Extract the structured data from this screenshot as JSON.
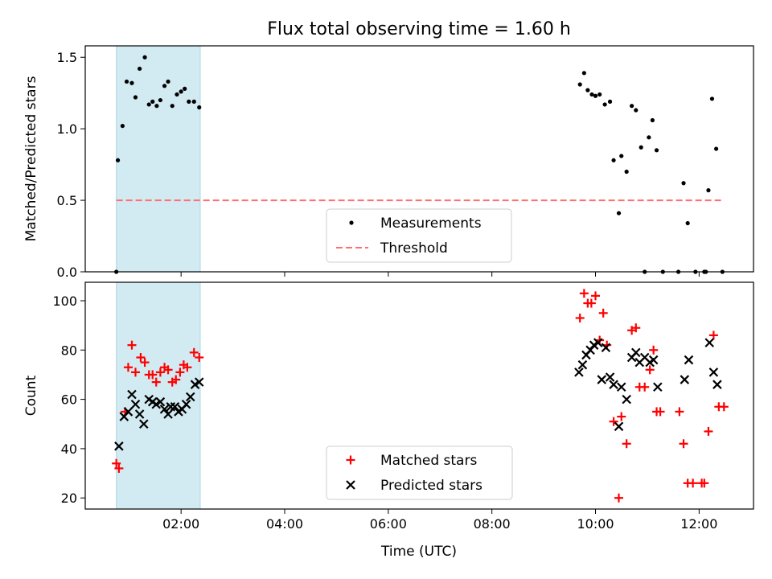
{
  "chart_data": {
    "title": "Flux total observing time = 1.60 h",
    "xlabel": "Time (UTC)",
    "x_ticks": [
      "02:00",
      "04:00",
      "06:00",
      "08:00",
      "10:00",
      "12:00"
    ],
    "x_tick_hours": [
      2,
      4,
      6,
      8,
      10,
      12
    ],
    "xlim_hours": [
      0.15,
      13.05
    ],
    "shaded_interval_hours": [
      0.75,
      2.37
    ],
    "colors": {
      "shade": "#add8e6",
      "measurements": "#000000",
      "threshold": "#ff6f6f",
      "matched": "#ff0000",
      "predicted": "#000000"
    },
    "panels": [
      {
        "type": "scatter",
        "ylabel": "Matched/Predicted stars",
        "ylim": [
          0,
          1.58
        ],
        "y_ticks": [
          "0.0",
          "0.5",
          "1.0",
          "1.5"
        ],
        "legend": {
          "placement": "lower-center",
          "entries": [
            "Measurements",
            "Threshold"
          ]
        },
        "threshold": 0.5,
        "threshold_x_hours": [
          0.75,
          12.45
        ],
        "series": [
          {
            "name": "Measurements",
            "marker": "dot",
            "points": [
              [
                0.75,
                0.0
              ],
              [
                0.78,
                0.78
              ],
              [
                0.87,
                1.02
              ],
              [
                0.95,
                1.33
              ],
              [
                1.05,
                1.32
              ],
              [
                1.12,
                1.22
              ],
              [
                1.2,
                1.42
              ],
              [
                1.3,
                1.5
              ],
              [
                1.38,
                1.17
              ],
              [
                1.45,
                1.19
              ],
              [
                1.53,
                1.16
              ],
              [
                1.6,
                1.2
              ],
              [
                1.68,
                1.3
              ],
              [
                1.75,
                1.33
              ],
              [
                1.83,
                1.16
              ],
              [
                1.92,
                1.24
              ],
              [
                2.0,
                1.26
              ],
              [
                2.07,
                1.28
              ],
              [
                2.15,
                1.19
              ],
              [
                2.25,
                1.19
              ],
              [
                2.35,
                1.15
              ],
              [
                9.7,
                1.31
              ],
              [
                9.78,
                1.39
              ],
              [
                9.85,
                1.27
              ],
              [
                9.93,
                1.24
              ],
              [
                10.0,
                1.23
              ],
              [
                10.08,
                1.24
              ],
              [
                10.18,
                1.17
              ],
              [
                10.28,
                1.19
              ],
              [
                10.35,
                0.78
              ],
              [
                10.45,
                0.41
              ],
              [
                10.5,
                0.81
              ],
              [
                10.6,
                0.7
              ],
              [
                10.7,
                1.16
              ],
              [
                10.78,
                1.13
              ],
              [
                10.88,
                0.87
              ],
              [
                10.95,
                0.0
              ],
              [
                11.03,
                0.94
              ],
              [
                11.1,
                1.06
              ],
              [
                11.18,
                0.85
              ],
              [
                11.3,
                0.0
              ],
              [
                11.6,
                0.0
              ],
              [
                11.7,
                0.62
              ],
              [
                11.78,
                0.34
              ],
              [
                11.93,
                0.0
              ],
              [
                12.1,
                0.0
              ],
              [
                12.13,
                0.0
              ],
              [
                12.18,
                0.57
              ],
              [
                12.25,
                1.21
              ],
              [
                12.33,
                0.86
              ],
              [
                12.45,
                0.0
              ]
            ]
          }
        ]
      },
      {
        "type": "scatter",
        "ylabel": "Count",
        "ylim": [
          15.5,
          107.5
        ],
        "y_ticks": [
          "20",
          "40",
          "60",
          "80",
          "100"
        ],
        "legend": {
          "placement": "lower-center",
          "entries": [
            "Matched stars",
            "Predicted stars"
          ]
        },
        "series": [
          {
            "name": "Matched stars",
            "marker": "plus",
            "points": [
              [
                0.75,
                34
              ],
              [
                0.8,
                32
              ],
              [
                0.92,
                55
              ],
              [
                0.98,
                73
              ],
              [
                1.05,
                82
              ],
              [
                1.12,
                71
              ],
              [
                1.22,
                77
              ],
              [
                1.3,
                75
              ],
              [
                1.38,
                70
              ],
              [
                1.45,
                70
              ],
              [
                1.52,
                67
              ],
              [
                1.6,
                71
              ],
              [
                1.68,
                73
              ],
              [
                1.75,
                72
              ],
              [
                1.83,
                67
              ],
              [
                1.9,
                68
              ],
              [
                1.98,
                71
              ],
              [
                2.05,
                74
              ],
              [
                2.12,
                73
              ],
              [
                2.25,
                79
              ],
              [
                2.35,
                77
              ],
              [
                9.7,
                93
              ],
              [
                9.78,
                103
              ],
              [
                9.85,
                99
              ],
              [
                9.92,
                99
              ],
              [
                10.0,
                102
              ],
              [
                10.08,
                84
              ],
              [
                10.15,
                95
              ],
              [
                10.22,
                82
              ],
              [
                10.35,
                51
              ],
              [
                10.45,
                20
              ],
              [
                10.5,
                53
              ],
              [
                10.6,
                42
              ],
              [
                10.7,
                88
              ],
              [
                10.78,
                89
              ],
              [
                10.85,
                65
              ],
              [
                10.95,
                65
              ],
              [
                11.05,
                72
              ],
              [
                11.12,
                80
              ],
              [
                11.18,
                55
              ],
              [
                11.25,
                55
              ],
              [
                11.62,
                55
              ],
              [
                11.7,
                42
              ],
              [
                11.78,
                26
              ],
              [
                11.88,
                26
              ],
              [
                12.05,
                26
              ],
              [
                12.1,
                26
              ],
              [
                12.18,
                47
              ],
              [
                12.28,
                86
              ],
              [
                12.38,
                57
              ],
              [
                12.48,
                57
              ]
            ]
          },
          {
            "name": "Predicted stars",
            "marker": "x",
            "points": [
              [
                0.8,
                41
              ],
              [
                0.9,
                53
              ],
              [
                0.98,
                55
              ],
              [
                1.05,
                62
              ],
              [
                1.12,
                58
              ],
              [
                1.2,
                54
              ],
              [
                1.28,
                50
              ],
              [
                1.38,
                60
              ],
              [
                1.45,
                59
              ],
              [
                1.52,
                58
              ],
              [
                1.6,
                59
              ],
              [
                1.68,
                56
              ],
              [
                1.75,
                54
              ],
              [
                1.8,
                57
              ],
              [
                1.88,
                57
              ],
              [
                1.95,
                55
              ],
              [
                2.02,
                56
              ],
              [
                2.1,
                58
              ],
              [
                2.18,
                61
              ],
              [
                2.27,
                66
              ],
              [
                2.35,
                67
              ],
              [
                9.68,
                71
              ],
              [
                9.75,
                74
              ],
              [
                9.82,
                78
              ],
              [
                9.9,
                80
              ],
              [
                9.97,
                82
              ],
              [
                10.05,
                83
              ],
              [
                10.12,
                68
              ],
              [
                10.2,
                81
              ],
              [
                10.28,
                69
              ],
              [
                10.35,
                66
              ],
              [
                10.45,
                49
              ],
              [
                10.5,
                65
              ],
              [
                10.6,
                60
              ],
              [
                10.7,
                77
              ],
              [
                10.78,
                79
              ],
              [
                10.85,
                75
              ],
              [
                10.95,
                77
              ],
              [
                11.05,
                75
              ],
              [
                11.12,
                76
              ],
              [
                11.2,
                65
              ],
              [
                11.72,
                68
              ],
              [
                11.8,
                76
              ],
              [
                12.2,
                83
              ],
              [
                12.28,
                71
              ],
              [
                12.35,
                66
              ]
            ]
          }
        ]
      }
    ]
  }
}
